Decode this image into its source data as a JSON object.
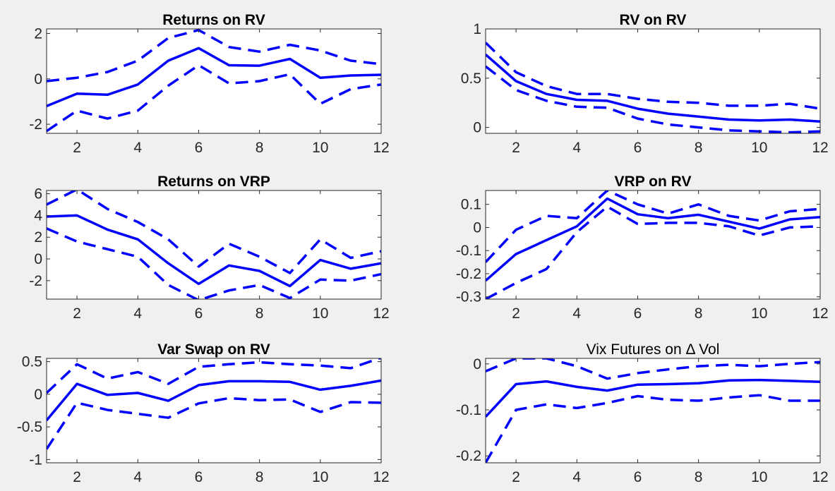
{
  "figure": {
    "background": "#f0f0f0",
    "axes_background": "#ffffff",
    "line_color": "#0000ff"
  },
  "chart_data": [
    {
      "type": "line",
      "title": "Returns on RV",
      "title_bold": true,
      "x": [
        1,
        2,
        3,
        4,
        5,
        6,
        7,
        8,
        9,
        10,
        11,
        12
      ],
      "xlim": [
        1,
        12
      ],
      "ylim": [
        -2.4,
        2.2
      ],
      "xticks": [
        2,
        4,
        6,
        8,
        10,
        12
      ],
      "yticks": [
        -2,
        0,
        2
      ],
      "ytick_labels": [
        "-2",
        "0",
        "2"
      ],
      "series": [
        {
          "style": "solid",
          "values": [
            -1.2,
            -0.65,
            -0.7,
            -0.25,
            0.8,
            1.35,
            0.6,
            0.58,
            0.88,
            0.05,
            0.15,
            0.18
          ]
        },
        {
          "style": "dashed",
          "values": [
            -0.1,
            0.05,
            0.3,
            0.8,
            1.8,
            2.15,
            1.4,
            1.2,
            1.5,
            1.25,
            0.8,
            0.65
          ]
        },
        {
          "style": "dashed",
          "values": [
            -2.3,
            -1.4,
            -1.75,
            -1.4,
            -0.3,
            0.6,
            -0.2,
            -0.1,
            0.2,
            -1.1,
            -0.45,
            -0.25
          ]
        }
      ]
    },
    {
      "type": "line",
      "title": "RV on RV",
      "title_bold": true,
      "x": [
        1,
        2,
        3,
        4,
        5,
        6,
        7,
        8,
        9,
        10,
        11,
        12
      ],
      "xlim": [
        1,
        12
      ],
      "ylim": [
        -0.06,
        1.0
      ],
      "xticks": [
        2,
        4,
        6,
        8,
        10,
        12
      ],
      "yticks": [
        0,
        0.5,
        1
      ],
      "ytick_labels": [
        "0",
        "0.5",
        "1"
      ],
      "series": [
        {
          "style": "solid",
          "values": [
            0.74,
            0.47,
            0.34,
            0.28,
            0.27,
            0.19,
            0.14,
            0.11,
            0.08,
            0.07,
            0.08,
            0.06
          ]
        },
        {
          "style": "dashed",
          "values": [
            0.86,
            0.56,
            0.42,
            0.34,
            0.34,
            0.29,
            0.26,
            0.25,
            0.22,
            0.22,
            0.24,
            0.19
          ]
        },
        {
          "style": "dashed",
          "values": [
            0.62,
            0.38,
            0.27,
            0.21,
            0.2,
            0.09,
            0.03,
            0.0,
            -0.03,
            -0.04,
            -0.05,
            -0.04
          ]
        }
      ]
    },
    {
      "type": "line",
      "title": "Returns on VRP",
      "title_bold": true,
      "x": [
        1,
        2,
        3,
        4,
        5,
        6,
        7,
        8,
        9,
        10,
        11,
        12
      ],
      "xlim": [
        1,
        12
      ],
      "ylim": [
        -3.7,
        6.3
      ],
      "xticks": [
        2,
        4,
        6,
        8,
        10,
        12
      ],
      "yticks": [
        -2,
        0,
        2,
        4,
        6
      ],
      "ytick_labels": [
        "-2",
        "0",
        "2",
        "4",
        "6"
      ],
      "series": [
        {
          "style": "solid",
          "values": [
            3.9,
            4.0,
            2.7,
            1.8,
            -0.4,
            -2.3,
            -0.6,
            -1.1,
            -2.5,
            -0.1,
            -0.9,
            -0.4
          ]
        },
        {
          "style": "dashed",
          "values": [
            5.0,
            6.4,
            4.6,
            3.4,
            1.8,
            -0.7,
            1.4,
            0.2,
            -1.3,
            1.8,
            0.1,
            0.7
          ]
        },
        {
          "style": "dashed",
          "values": [
            2.8,
            1.6,
            0.9,
            0.2,
            -2.4,
            -3.8,
            -2.9,
            -2.4,
            -3.6,
            -1.9,
            -2.0,
            -1.4
          ]
        }
      ]
    },
    {
      "type": "line",
      "title": "VRP on RV",
      "title_bold": true,
      "x": [
        1,
        2,
        3,
        4,
        5,
        6,
        7,
        8,
        9,
        10,
        11,
        12
      ],
      "xlim": [
        1,
        12
      ],
      "ylim": [
        -0.31,
        0.16
      ],
      "xticks": [
        2,
        4,
        6,
        8,
        10,
        12
      ],
      "yticks": [
        -0.3,
        -0.2,
        -0.1,
        0,
        0.1
      ],
      "ytick_labels": [
        "-0.3",
        "-0.2",
        "-0.1",
        "0",
        "0.1"
      ],
      "series": [
        {
          "style": "solid",
          "values": [
            -0.23,
            -0.115,
            -0.055,
            0.005,
            0.125,
            0.057,
            0.04,
            0.055,
            0.025,
            -0.005,
            0.035,
            0.045
          ]
        },
        {
          "style": "dashed",
          "values": [
            -0.15,
            -0.01,
            0.05,
            0.04,
            0.16,
            0.1,
            0.06,
            0.1,
            0.05,
            0.03,
            0.07,
            0.08
          ]
        },
        {
          "style": "dashed",
          "values": [
            -0.31,
            -0.24,
            -0.18,
            -0.02,
            0.09,
            0.015,
            0.02,
            0.02,
            0.005,
            -0.035,
            0.0,
            0.005
          ]
        }
      ]
    },
    {
      "type": "line",
      "title": "Var Swap on RV",
      "title_bold": true,
      "x": [
        1,
        2,
        3,
        4,
        5,
        6,
        7,
        8,
        9,
        10,
        11,
        12
      ],
      "xlim": [
        1,
        12
      ],
      "ylim": [
        -1.05,
        0.55
      ],
      "xticks": [
        2,
        4,
        6,
        8,
        10,
        12
      ],
      "yticks": [
        -1,
        -0.5,
        0,
        0.5
      ],
      "ytick_labels": [
        "-1",
        "-0.5",
        "0",
        "0.5"
      ],
      "series": [
        {
          "style": "solid",
          "values": [
            -0.4,
            0.16,
            -0.01,
            0.02,
            -0.1,
            0.14,
            0.2,
            0.2,
            0.19,
            0.07,
            0.13,
            0.21
          ]
        },
        {
          "style": "dashed",
          "values": [
            0.02,
            0.46,
            0.24,
            0.34,
            0.16,
            0.42,
            0.46,
            0.49,
            0.46,
            0.44,
            0.4,
            0.56
          ]
        },
        {
          "style": "dashed",
          "values": [
            -0.84,
            -0.13,
            -0.24,
            -0.3,
            -0.36,
            -0.14,
            -0.06,
            -0.09,
            -0.08,
            -0.27,
            -0.12,
            -0.13
          ]
        }
      ]
    },
    {
      "type": "line",
      "title": "Vix Futures on Δ Vol",
      "title_bold": false,
      "x": [
        1,
        2,
        3,
        4,
        5,
        6,
        7,
        8,
        9,
        10,
        11,
        12
      ],
      "xlim": [
        1,
        12
      ],
      "ylim": [
        -0.215,
        0.012
      ],
      "xticks": [
        2,
        4,
        6,
        8,
        10,
        12
      ],
      "yticks": [
        -0.2,
        -0.1,
        0
      ],
      "ytick_labels": [
        "-0.2",
        "-0.1",
        "0"
      ],
      "series": [
        {
          "style": "solid",
          "values": [
            -0.115,
            -0.044,
            -0.038,
            -0.05,
            -0.058,
            -0.045,
            -0.044,
            -0.042,
            -0.036,
            -0.035,
            -0.037,
            -0.039
          ]
        },
        {
          "style": "dashed",
          "values": [
            -0.016,
            0.012,
            0.012,
            -0.005,
            -0.032,
            -0.02,
            -0.012,
            -0.005,
            -0.002,
            -0.005,
            0.0,
            0.004
          ]
        },
        {
          "style": "dashed",
          "values": [
            -0.215,
            -0.1,
            -0.088,
            -0.096,
            -0.085,
            -0.07,
            -0.078,
            -0.08,
            -0.073,
            -0.068,
            -0.08,
            -0.08
          ]
        }
      ]
    }
  ]
}
